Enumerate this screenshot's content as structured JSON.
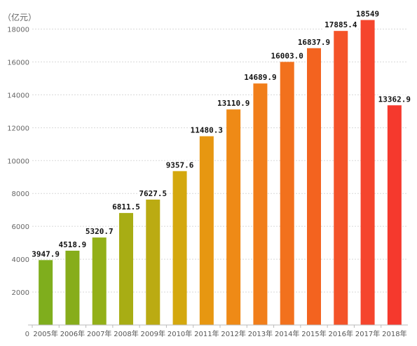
{
  "chart_data": {
    "type": "bar",
    "unit_label": "（亿元）",
    "categories": [
      "2005年",
      "2006年",
      "2007年",
      "2008年",
      "2009年",
      "2010年",
      "2011年",
      "2012年",
      "2013年",
      "2014年",
      "2015年",
      "2016年",
      "2017年",
      "2018年"
    ],
    "values": [
      3947.9,
      4518.9,
      5320.7,
      6811.5,
      7627.5,
      9357.6,
      11480.3,
      13110.9,
      14689.9,
      16003.0,
      16837.9,
      17885.4,
      18549,
      13362.9
    ],
    "value_labels": [
      "3947.9",
      "4518.9",
      "5320.7",
      "6811.5",
      "7627.5",
      "9357.6",
      "11480.3",
      "13110.9",
      "14689.9",
      "16003.0",
      "16837.9",
      "17885.4",
      "18549",
      "13362.9"
    ],
    "colors": [
      "#7fae1d",
      "#87ad1b",
      "#93b018",
      "#a8ad14",
      "#bbab12",
      "#d4a80e",
      "#e79711",
      "#ef8a16",
      "#f17e1a",
      "#f2711d",
      "#f3631f",
      "#f45328",
      "#f5452d",
      "#f5392d"
    ],
    "ylim": [
      0,
      19000
    ],
    "yticks": [
      0,
      2000,
      4000,
      6000,
      8000,
      10000,
      12000,
      14000,
      16000,
      18000
    ],
    "grid": true,
    "gridline_color": "#d8d8d8",
    "axis_color": "#bbbbbb"
  }
}
